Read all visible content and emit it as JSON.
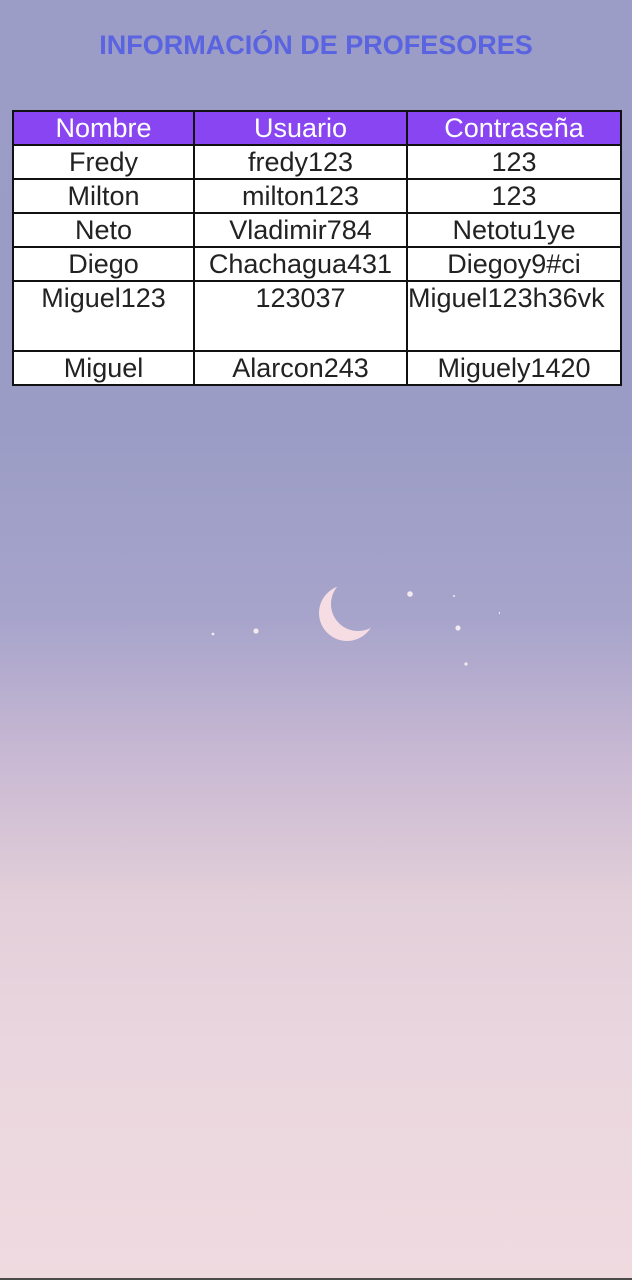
{
  "page": {
    "title": "INFORMACIÓN DE PROFESORES"
  },
  "table": {
    "headers": {
      "nombre": "Nombre",
      "usuario": "Usuario",
      "contrasena": "Contraseña"
    },
    "rows": [
      {
        "nombre": "Fredy",
        "usuario": "fredy123",
        "contrasena": "123"
      },
      {
        "nombre": "Milton",
        "usuario": "milton123",
        "contrasena": "123"
      },
      {
        "nombre": "Neto",
        "usuario": "Vladimir784",
        "contrasena": "Netotu1ye"
      },
      {
        "nombre": "Diego",
        "usuario": "Chachagua431",
        "contrasena": "Diegoy9#ci"
      },
      {
        "nombre": "Miguel123",
        "usuario": "123037",
        "contrasena": "Miguel123h36vk"
      },
      {
        "nombre": "Miguel",
        "usuario": "Alarcon243",
        "contrasena": "Miguely1420"
      }
    ]
  },
  "colors": {
    "title": "#5a63e0",
    "header_bg": "#8a45f2",
    "header_text": "#ffffff",
    "cell_bg": "#ffffff",
    "border": "#111111",
    "moon": "#f5dde3"
  },
  "background": {
    "decoration": "crescent-moon-and-stars"
  }
}
